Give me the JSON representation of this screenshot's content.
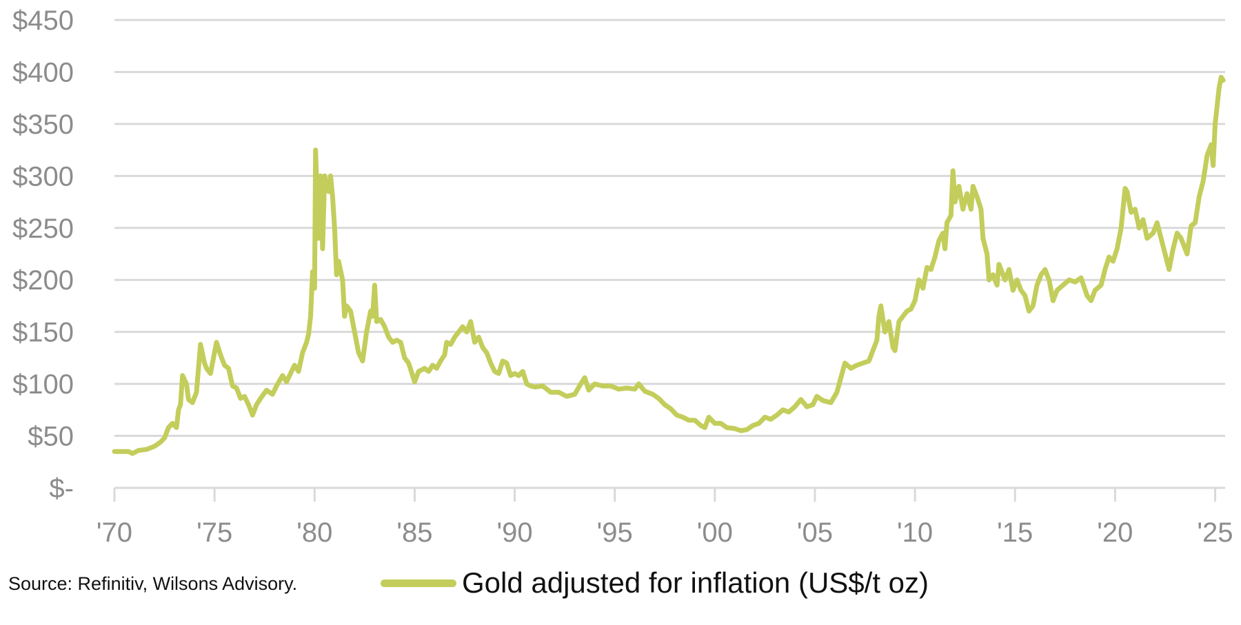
{
  "chart_data": {
    "type": "line",
    "title": "",
    "xlabel": "",
    "ylabel": "",
    "xlim": [
      1970,
      2025.5
    ],
    "ylim": [
      0,
      450
    ],
    "grid": true,
    "y_ticks": [
      0,
      50,
      100,
      150,
      200,
      250,
      300,
      350,
      400,
      450
    ],
    "y_tick_labels": [
      "$-",
      "$50",
      "$100",
      "$150",
      "$200",
      "$250",
      "$300",
      "$350",
      "$400",
      "$450"
    ],
    "x_ticks": [
      1970,
      1975,
      1980,
      1985,
      1990,
      1995,
      2000,
      2005,
      2010,
      2015,
      2020,
      2025
    ],
    "x_tick_labels": [
      "'70",
      "'75",
      "'80",
      "'85",
      "'90",
      "'95",
      "'00",
      "'05",
      "'10",
      "'15",
      "'20",
      "'25"
    ],
    "legend_placement": "bottom",
    "series": [
      {
        "name": "Gold adjusted for inflation (US$/t oz)",
        "color": "#c3cd5b",
        "points": [
          [
            1970.0,
            35
          ],
          [
            1970.7,
            35
          ],
          [
            1970.9,
            33
          ],
          [
            1971.2,
            36
          ],
          [
            1971.6,
            37
          ],
          [
            1972.0,
            40
          ],
          [
            1972.3,
            44
          ],
          [
            1972.5,
            48
          ],
          [
            1972.7,
            58
          ],
          [
            1972.9,
            62
          ],
          [
            1973.1,
            58
          ],
          [
            1973.2,
            75
          ],
          [
            1973.3,
            80
          ],
          [
            1973.4,
            108
          ],
          [
            1973.6,
            100
          ],
          [
            1973.7,
            85
          ],
          [
            1973.9,
            82
          ],
          [
            1974.1,
            92
          ],
          [
            1974.3,
            138
          ],
          [
            1974.5,
            120
          ],
          [
            1974.6,
            115
          ],
          [
            1974.8,
            110
          ],
          [
            1975.0,
            130
          ],
          [
            1975.1,
            140
          ],
          [
            1975.3,
            128
          ],
          [
            1975.5,
            118
          ],
          [
            1975.7,
            115
          ],
          [
            1975.9,
            98
          ],
          [
            1976.1,
            96
          ],
          [
            1976.3,
            86
          ],
          [
            1976.5,
            88
          ],
          [
            1976.7,
            80
          ],
          [
            1976.9,
            70
          ],
          [
            1977.1,
            80
          ],
          [
            1977.3,
            86
          ],
          [
            1977.6,
            94
          ],
          [
            1977.9,
            90
          ],
          [
            1978.1,
            98
          ],
          [
            1978.4,
            108
          ],
          [
            1978.6,
            102
          ],
          [
            1978.8,
            110
          ],
          [
            1979.0,
            118
          ],
          [
            1979.2,
            112
          ],
          [
            1979.4,
            130
          ],
          [
            1979.6,
            140
          ],
          [
            1979.7,
            148
          ],
          [
            1979.8,
            165
          ],
          [
            1979.9,
            208
          ],
          [
            1980.0,
            192
          ],
          [
            1980.05,
            325
          ],
          [
            1980.2,
            240
          ],
          [
            1980.3,
            300
          ],
          [
            1980.4,
            230
          ],
          [
            1980.5,
            300
          ],
          [
            1980.7,
            285
          ],
          [
            1980.8,
            300
          ],
          [
            1980.9,
            280
          ],
          [
            1981.0,
            250
          ],
          [
            1981.1,
            205
          ],
          [
            1981.2,
            218
          ],
          [
            1981.4,
            200
          ],
          [
            1981.5,
            165
          ],
          [
            1981.6,
            175
          ],
          [
            1981.8,
            170
          ],
          [
            1982.0,
            150
          ],
          [
            1982.2,
            130
          ],
          [
            1982.4,
            122
          ],
          [
            1982.6,
            150
          ],
          [
            1982.8,
            170
          ],
          [
            1982.9,
            165
          ],
          [
            1983.0,
            195
          ],
          [
            1983.1,
            160
          ],
          [
            1983.3,
            162
          ],
          [
            1983.5,
            155
          ],
          [
            1983.7,
            145
          ],
          [
            1983.9,
            140
          ],
          [
            1984.1,
            142
          ],
          [
            1984.3,
            140
          ],
          [
            1984.5,
            125
          ],
          [
            1984.7,
            120
          ],
          [
            1984.9,
            108
          ],
          [
            1985.0,
            102
          ],
          [
            1985.2,
            112
          ],
          [
            1985.5,
            115
          ],
          [
            1985.7,
            112
          ],
          [
            1985.9,
            118
          ],
          [
            1986.1,
            115
          ],
          [
            1986.3,
            122
          ],
          [
            1986.5,
            128
          ],
          [
            1986.6,
            140
          ],
          [
            1986.8,
            138
          ],
          [
            1987.0,
            145
          ],
          [
            1987.2,
            150
          ],
          [
            1987.4,
            155
          ],
          [
            1987.6,
            150
          ],
          [
            1987.8,
            160
          ],
          [
            1988.0,
            140
          ],
          [
            1988.2,
            145
          ],
          [
            1988.4,
            135
          ],
          [
            1988.6,
            130
          ],
          [
            1988.8,
            120
          ],
          [
            1989.0,
            112
          ],
          [
            1989.2,
            110
          ],
          [
            1989.4,
            122
          ],
          [
            1989.6,
            120
          ],
          [
            1989.8,
            108
          ],
          [
            1990.0,
            110
          ],
          [
            1990.2,
            108
          ],
          [
            1990.4,
            112
          ],
          [
            1990.6,
            100
          ],
          [
            1990.8,
            98
          ],
          [
            1991.0,
            97
          ],
          [
            1991.4,
            98
          ],
          [
            1991.8,
            92
          ],
          [
            1992.2,
            92
          ],
          [
            1992.6,
            88
          ],
          [
            1993.0,
            90
          ],
          [
            1993.3,
            100
          ],
          [
            1993.5,
            106
          ],
          [
            1993.7,
            94
          ],
          [
            1994.0,
            100
          ],
          [
            1994.4,
            98
          ],
          [
            1994.8,
            98
          ],
          [
            1995.2,
            95
          ],
          [
            1995.6,
            96
          ],
          [
            1996.0,
            95
          ],
          [
            1996.2,
            100
          ],
          [
            1996.5,
            93
          ],
          [
            1996.9,
            90
          ],
          [
            1997.2,
            86
          ],
          [
            1997.5,
            80
          ],
          [
            1997.8,
            76
          ],
          [
            1998.1,
            70
          ],
          [
            1998.4,
            68
          ],
          [
            1998.7,
            65
          ],
          [
            1999.0,
            65
          ],
          [
            1999.3,
            60
          ],
          [
            1999.5,
            58
          ],
          [
            1999.7,
            68
          ],
          [
            2000.0,
            62
          ],
          [
            2000.3,
            62
          ],
          [
            2000.6,
            58
          ],
          [
            2001.0,
            57
          ],
          [
            2001.3,
            55
          ],
          [
            2001.6,
            56
          ],
          [
            2001.9,
            60
          ],
          [
            2002.2,
            62
          ],
          [
            2002.5,
            68
          ],
          [
            2002.8,
            66
          ],
          [
            2003.1,
            70
          ],
          [
            2003.4,
            75
          ],
          [
            2003.7,
            73
          ],
          [
            2004.0,
            78
          ],
          [
            2004.3,
            85
          ],
          [
            2004.6,
            78
          ],
          [
            2004.9,
            80
          ],
          [
            2005.1,
            88
          ],
          [
            2005.4,
            84
          ],
          [
            2005.8,
            82
          ],
          [
            2006.1,
            92
          ],
          [
            2006.3,
            106
          ],
          [
            2006.5,
            120
          ],
          [
            2006.8,
            115
          ],
          [
            2007.1,
            118
          ],
          [
            2007.4,
            120
          ],
          [
            2007.7,
            122
          ],
          [
            2007.9,
            132
          ],
          [
            2008.1,
            142
          ],
          [
            2008.2,
            165
          ],
          [
            2008.3,
            175
          ],
          [
            2008.5,
            150
          ],
          [
            2008.7,
            160
          ],
          [
            2008.9,
            135
          ],
          [
            2009.0,
            132
          ],
          [
            2009.2,
            160
          ],
          [
            2009.4,
            165
          ],
          [
            2009.6,
            170
          ],
          [
            2009.8,
            172
          ],
          [
            2010.0,
            180
          ],
          [
            2010.2,
            200
          ],
          [
            2010.4,
            192
          ],
          [
            2010.6,
            212
          ],
          [
            2010.8,
            210
          ],
          [
            2011.0,
            222
          ],
          [
            2011.2,
            238
          ],
          [
            2011.4,
            245
          ],
          [
            2011.5,
            230
          ],
          [
            2011.6,
            255
          ],
          [
            2011.8,
            262
          ],
          [
            2011.9,
            305
          ],
          [
            2012.0,
            275
          ],
          [
            2012.2,
            290
          ],
          [
            2012.4,
            268
          ],
          [
            2012.6,
            283
          ],
          [
            2012.8,
            268
          ],
          [
            2012.9,
            290
          ],
          [
            2013.1,
            280
          ],
          [
            2013.3,
            268
          ],
          [
            2013.4,
            240
          ],
          [
            2013.6,
            225
          ],
          [
            2013.7,
            200
          ],
          [
            2013.9,
            205
          ],
          [
            2014.1,
            195
          ],
          [
            2014.2,
            215
          ],
          [
            2014.5,
            200
          ],
          [
            2014.7,
            210
          ],
          [
            2014.9,
            190
          ],
          [
            2015.1,
            200
          ],
          [
            2015.3,
            190
          ],
          [
            2015.5,
            185
          ],
          [
            2015.7,
            170
          ],
          [
            2015.9,
            175
          ],
          [
            2016.1,
            195
          ],
          [
            2016.3,
            205
          ],
          [
            2016.5,
            210
          ],
          [
            2016.7,
            200
          ],
          [
            2016.9,
            180
          ],
          [
            2017.1,
            190
          ],
          [
            2017.4,
            195
          ],
          [
            2017.7,
            200
          ],
          [
            2018.0,
            198
          ],
          [
            2018.3,
            202
          ],
          [
            2018.6,
            185
          ],
          [
            2018.8,
            180
          ],
          [
            2019.0,
            190
          ],
          [
            2019.3,
            195
          ],
          [
            2019.5,
            210
          ],
          [
            2019.7,
            222
          ],
          [
            2019.9,
            218
          ],
          [
            2020.1,
            230
          ],
          [
            2020.3,
            250
          ],
          [
            2020.5,
            288
          ],
          [
            2020.6,
            285
          ],
          [
            2020.8,
            265
          ],
          [
            2021.0,
            268
          ],
          [
            2021.2,
            250
          ],
          [
            2021.4,
            258
          ],
          [
            2021.6,
            240
          ],
          [
            2021.9,
            245
          ],
          [
            2022.1,
            255
          ],
          [
            2022.3,
            240
          ],
          [
            2022.5,
            225
          ],
          [
            2022.7,
            210
          ],
          [
            2022.9,
            230
          ],
          [
            2023.1,
            245
          ],
          [
            2023.3,
            240
          ],
          [
            2023.6,
            225
          ],
          [
            2023.8,
            252
          ],
          [
            2024.0,
            255
          ],
          [
            2024.2,
            280
          ],
          [
            2024.4,
            295
          ],
          [
            2024.6,
            320
          ],
          [
            2024.8,
            330
          ],
          [
            2024.9,
            310
          ],
          [
            2025.0,
            350
          ],
          [
            2025.2,
            385
          ],
          [
            2025.3,
            395
          ],
          [
            2025.4,
            392
          ]
        ]
      }
    ]
  },
  "source": "Source: Refinitiv, Wilsons Advisory.",
  "legend": {
    "label": "Gold adjusted for inflation (US$/t oz)",
    "color": "#c3cd5b"
  }
}
